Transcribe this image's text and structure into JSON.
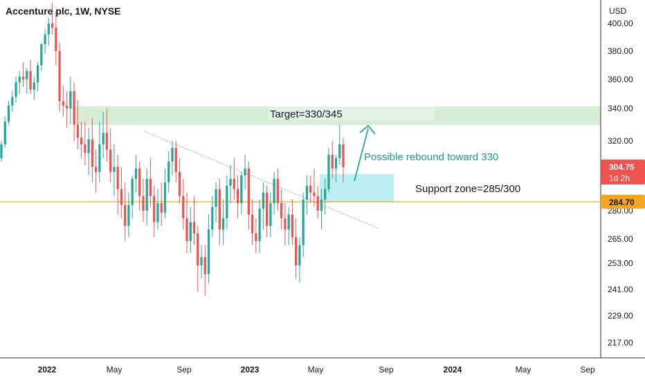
{
  "header": {
    "title": "Accenture plc, 1W, NYSE"
  },
  "colors": {
    "up": "#26a69a",
    "down": "#ef5350",
    "support_line": "#f5a623",
    "target_zone": "#c8e6c9",
    "support_zone": "#b2ebf2",
    "arrow": "#26a69a"
  },
  "chart_data": {
    "type": "candlestick",
    "title": "Accenture plc, 1W, NYSE",
    "currency": "USD",
    "y_ticks": [
      "400.00",
      "380.00",
      "360.00",
      "340.00",
      "320.00",
      "304.75",
      "284.70",
      "280.00",
      "265.00",
      "253.00",
      "241.00",
      "229.00",
      "217.00"
    ],
    "y_tick_values": [
      400,
      380,
      360,
      340,
      320,
      280,
      265,
      253,
      241,
      229,
      217
    ],
    "x_ticks": [
      {
        "label": "2022",
        "bold": true
      },
      {
        "label": "May",
        "bold": false
      },
      {
        "label": "Sep",
        "bold": false
      },
      {
        "label": "2023",
        "bold": true
      },
      {
        "label": "May",
        "bold": false
      },
      {
        "label": "Sep",
        "bold": false
      },
      {
        "label": "2024",
        "bold": true
      },
      {
        "label": "May",
        "bold": false
      },
      {
        "label": "Sep",
        "bold": false
      }
    ],
    "last_price": {
      "value": "304.75",
      "countdown": "1d 2h"
    },
    "support_level": {
      "value": "284.70"
    },
    "annotations": {
      "target": "Target=330/345",
      "rebound": "Possible rebound toward 330",
      "support": "Support zone=285/300"
    },
    "candles_ohlc": [
      [
        310,
        320,
        308,
        318
      ],
      [
        318,
        335,
        316,
        332
      ],
      [
        332,
        345,
        330,
        342
      ],
      [
        342,
        352,
        338,
        348
      ],
      [
        348,
        362,
        344,
        358
      ],
      [
        358,
        366,
        350,
        362
      ],
      [
        362,
        372,
        355,
        360
      ],
      [
        360,
        368,
        350,
        366
      ],
      [
        366,
        374,
        350,
        353
      ],
      [
        353,
        362,
        346,
        358
      ],
      [
        358,
        372,
        352,
        370
      ],
      [
        370,
        386,
        366,
        385
      ],
      [
        385,
        396,
        378,
        392
      ],
      [
        392,
        405,
        384,
        400
      ],
      [
        400,
        418,
        392,
        397
      ],
      [
        397,
        410,
        370,
        380
      ],
      [
        380,
        386,
        338,
        345
      ],
      [
        345,
        356,
        335,
        342
      ],
      [
        342,
        352,
        328,
        340
      ],
      [
        340,
        362,
        330,
        352
      ],
      [
        352,
        358,
        320,
        330
      ],
      [
        330,
        346,
        315,
        322
      ],
      [
        322,
        332,
        310,
        318
      ],
      [
        318,
        332,
        306,
        313
      ],
      [
        313,
        328,
        300,
        321
      ],
      [
        321,
        334,
        296,
        305
      ],
      [
        305,
        315,
        290,
        302
      ],
      [
        302,
        332,
        296,
        318
      ],
      [
        318,
        338,
        310,
        325
      ],
      [
        325,
        340,
        308,
        315
      ],
      [
        315,
        328,
        296,
        302
      ],
      [
        302,
        318,
        288,
        305
      ],
      [
        305,
        312,
        278,
        292
      ],
      [
        292,
        305,
        276,
        283
      ],
      [
        283,
        296,
        264,
        272
      ],
      [
        272,
        290,
        266,
        283
      ],
      [
        283,
        300,
        276,
        298
      ],
      [
        298,
        312,
        290,
        304
      ],
      [
        304,
        308,
        280,
        288
      ],
      [
        288,
        298,
        274,
        280
      ],
      [
        280,
        304,
        272,
        298
      ],
      [
        298,
        310,
        282,
        288
      ],
      [
        288,
        294,
        266,
        274
      ],
      [
        274,
        292,
        270,
        284
      ],
      [
        284,
        296,
        272,
        279
      ],
      [
        279,
        304,
        276,
        296
      ],
      [
        296,
        314,
        290,
        308
      ],
      [
        308,
        320,
        300,
        316
      ],
      [
        316,
        320,
        296,
        302
      ],
      [
        302,
        310,
        284,
        288
      ],
      [
        288,
        298,
        270,
        276
      ],
      [
        276,
        290,
        258,
        264
      ],
      [
        264,
        282,
        258,
        274
      ],
      [
        274,
        288,
        262,
        268
      ],
      [
        268,
        272,
        240,
        252
      ],
      [
        252,
        262,
        246,
        256
      ],
      [
        256,
        262,
        238,
        248
      ],
      [
        248,
        278,
        244,
        270
      ],
      [
        270,
        288,
        266,
        282
      ],
      [
        282,
        296,
        274,
        292
      ],
      [
        292,
        298,
        262,
        270
      ],
      [
        270,
        286,
        262,
        276
      ],
      [
        276,
        300,
        270,
        294
      ],
      [
        294,
        306,
        284,
        298
      ],
      [
        298,
        310,
        286,
        292
      ],
      [
        292,
        300,
        276,
        284
      ],
      [
        284,
        302,
        278,
        300
      ],
      [
        300,
        312,
        292,
        304
      ],
      [
        304,
        308,
        270,
        278
      ],
      [
        278,
        286,
        262,
        268
      ],
      [
        268,
        276,
        258,
        264
      ],
      [
        264,
        286,
        258,
        281
      ],
      [
        281,
        296,
        270,
        290
      ],
      [
        290,
        294,
        266,
        272
      ],
      [
        272,
        290,
        266,
        284
      ],
      [
        284,
        302,
        278,
        298
      ],
      [
        298,
        304,
        280,
        284
      ],
      [
        284,
        292,
        270,
        276
      ],
      [
        276,
        284,
        262,
        270
      ],
      [
        270,
        282,
        262,
        278
      ],
      [
        278,
        286,
        262,
        266
      ],
      [
        266,
        276,
        246,
        252
      ],
      [
        252,
        266,
        244,
        262
      ],
      [
        262,
        290,
        256,
        286
      ],
      [
        286,
        300,
        278,
        294
      ],
      [
        294,
        300,
        284,
        290
      ],
      [
        290,
        304,
        282,
        288
      ],
      [
        288,
        294,
        276,
        280
      ],
      [
        280,
        292,
        270,
        286
      ],
      [
        286,
        298,
        278,
        292
      ],
      [
        292,
        316,
        290,
        312
      ],
      [
        312,
        320,
        298,
        304
      ],
      [
        304,
        312,
        296,
        310
      ],
      [
        310,
        330,
        306,
        318
      ],
      [
        318,
        322,
        296,
        304.75
      ]
    ]
  }
}
